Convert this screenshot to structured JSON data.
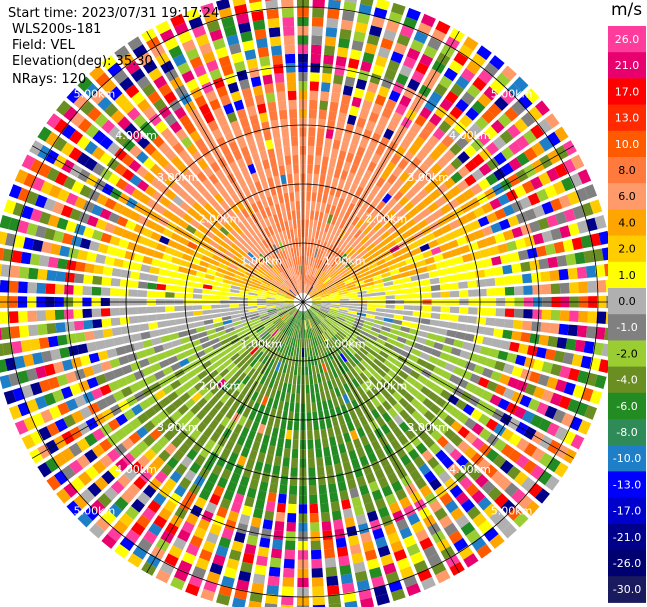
{
  "header": {
    "start_time": "Start time: 2023/07/31 19:17:24",
    "instrument": "WLS200s-181",
    "field": "Field: VEL",
    "elevation": "Elevation(deg): 35.30",
    "nrays": "NRays: 120"
  },
  "colorbar": {
    "unit": "m/s",
    "ticks": [
      "26.0",
      "21.0",
      "17.0",
      "13.0",
      "10.0",
      "8.0",
      "6.0",
      "4.0",
      "2.0",
      "1.0",
      "0.0",
      "-1.0",
      "-2.0",
      "-4.0",
      "-6.0",
      "-8.0",
      "-10.0",
      "-13.0",
      "-17.0",
      "-21.0",
      "-26.0",
      "-30.0"
    ],
    "colors": [
      "#ff3b9c",
      "#e8006e",
      "#ff0000",
      "#ff2a00",
      "#ff5a00",
      "#ff7a3c",
      "#ff9a6a",
      "#ffa500",
      "#ffcc00",
      "#ffff00",
      "#b0b0b0",
      "#808080",
      "#9acd32",
      "#6b8e23",
      "#228b22",
      "#2e8b57",
      "#1e7fc8",
      "#0000ff",
      "#0000cd",
      "#00008b",
      "#000070",
      "#1a1a5e"
    ]
  },
  "chart_data": {
    "type": "heatmap",
    "projection": "PPI (polar)",
    "field": "VEL",
    "units": "m/s",
    "nrays": 120,
    "range_rings_labels": [
      "1.00km",
      "2.00km",
      "3.00km",
      "4.00km",
      "5.00km"
    ],
    "range_rings_km": [
      1,
      2,
      3,
      4,
      5
    ],
    "max_range_km": 5.3,
    "color_scale_ticks": [
      26.0,
      21.0,
      17.0,
      13.0,
      10.0,
      8.0,
      6.0,
      4.0,
      2.0,
      1.0,
      0.0,
      -1.0,
      -2.0,
      -4.0,
      -6.0,
      -8.0,
      -10.0,
      -13.0,
      -17.0,
      -21.0,
      -26.0,
      -30.0
    ],
    "pattern": "Positive radial velocities (2 to 8 m/s, yellow/orange) toward north, negative radial velocities (-2 to -8 m/s, green) toward south within ~3.5 km; noisy random values beyond ~3.5 km."
  }
}
